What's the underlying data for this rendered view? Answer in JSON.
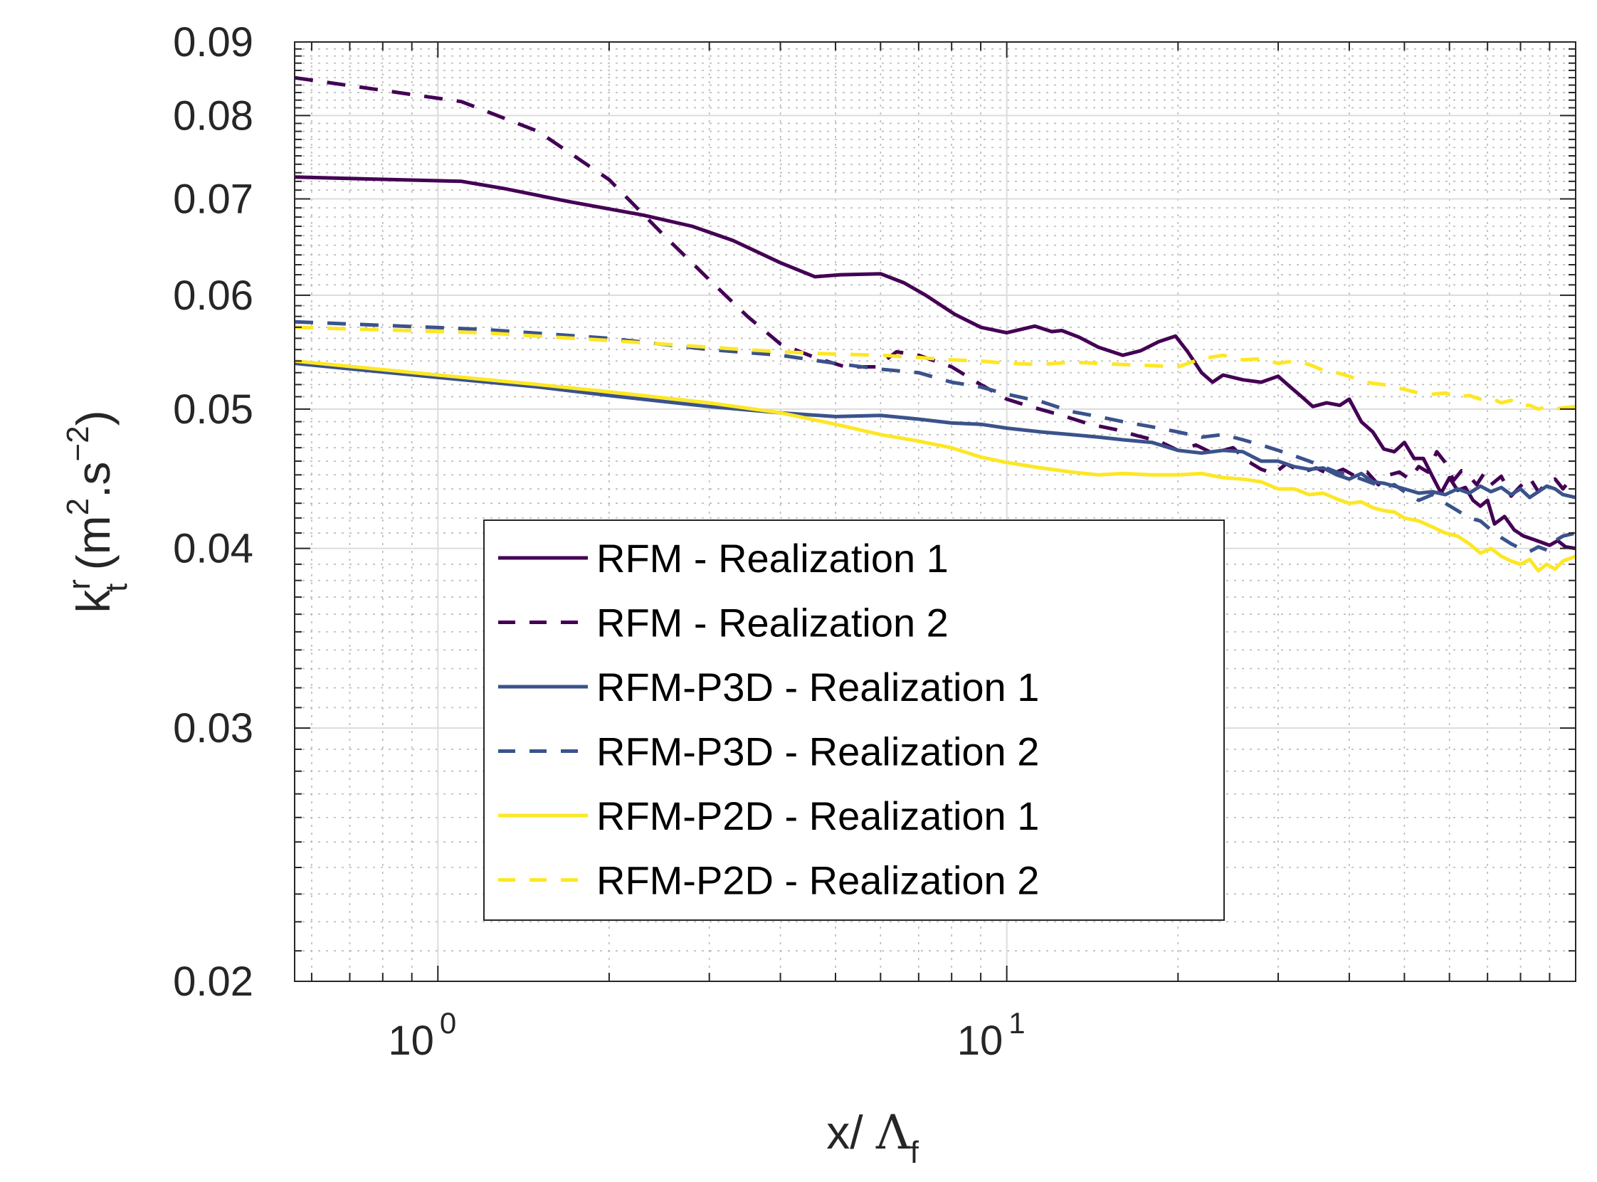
{
  "chart_data": {
    "type": "line",
    "x_scale": "log",
    "y_scale": "log",
    "xlim": [
      0.56,
      100
    ],
    "ylim": [
      0.02,
      0.09
    ],
    "grid": true,
    "xlabel": {
      "main": "x/ ",
      "symbol": "Λ",
      "sub": "f"
    },
    "ylabel": {
      "main": "k",
      "sup": "r",
      "sub": "t",
      "unit_open": " (m",
      "unit_sup1": "2",
      "unit_mid": ".s",
      "unit_sup2": "−2",
      "unit_close": ")"
    },
    "x_ticks": [
      {
        "value": 1,
        "base": "10",
        "exp": "0"
      },
      {
        "value": 10,
        "base": "10",
        "exp": "1"
      }
    ],
    "y_ticks": [
      {
        "value": 0.02,
        "label": "0.02"
      },
      {
        "value": 0.03,
        "label": "0.03"
      },
      {
        "value": 0.04,
        "label": "0.04"
      },
      {
        "value": 0.05,
        "label": "0.05"
      },
      {
        "value": 0.06,
        "label": "0.06"
      },
      {
        "value": 0.07,
        "label": "0.07"
      },
      {
        "value": 0.08,
        "label": "0.08"
      },
      {
        "value": 0.09,
        "label": "0.09"
      }
    ],
    "legend_position": "lower-center",
    "series": [
      {
        "name": "RFM - Realization 1",
        "color": "#440154",
        "dash": "solid",
        "x": [
          0.56,
          1.1,
          1.3,
          1.7,
          2.3,
          2.8,
          3.3,
          4.0,
          4.6,
          5.1,
          6.0,
          6.6,
          7.2,
          8.1,
          9.0,
          10.0,
          11.2,
          12.0,
          12.5,
          13.4,
          14.5,
          16.0,
          17.2,
          18.5,
          19.8,
          20.8,
          22.0,
          23.0,
          24.0,
          26.0,
          28.0,
          30.0,
          31.5,
          33.0,
          34.5,
          36.5,
          38.5,
          40.0,
          42.0,
          44.0,
          46.0,
          48.0,
          50.0,
          52.0,
          54.0,
          56.0,
          58.0,
          60.0,
          62.0,
          64.0,
          66.0,
          68.0,
          70.0,
          72.0,
          75.0,
          78.0,
          81.0,
          84.0,
          87.0,
          90.0,
          93.0,
          96.0,
          100.0
        ],
        "y": [
          0.0725,
          0.072,
          0.0712,
          0.0697,
          0.0682,
          0.067,
          0.0655,
          0.0632,
          0.0618,
          0.062,
          0.0621,
          0.0612,
          0.06,
          0.0582,
          0.057,
          0.0565,
          0.0571,
          0.0566,
          0.0567,
          0.0561,
          0.0552,
          0.0545,
          0.0549,
          0.0557,
          0.0562,
          0.0548,
          0.053,
          0.0522,
          0.0528,
          0.0524,
          0.0522,
          0.0527,
          0.0518,
          0.051,
          0.0502,
          0.0505,
          0.0503,
          0.0508,
          0.049,
          0.0482,
          0.0469,
          0.0467,
          0.0474,
          0.0462,
          0.0462,
          0.0449,
          0.0437,
          0.0448,
          0.0439,
          0.0441,
          0.0432,
          0.0428,
          0.0432,
          0.0416,
          0.0421,
          0.0412,
          0.0408,
          0.0406,
          0.0404,
          0.0402,
          0.0405,
          0.0401,
          0.04
        ]
      },
      {
        "name": "RFM - Realization 2",
        "color": "#440154",
        "dash": "dashed",
        "x": [
          0.56,
          1.1,
          1.5,
          2.0,
          2.5,
          3.0,
          3.5,
          4.0,
          4.6,
          5.2,
          5.9,
          6.4,
          7.0,
          8.0,
          9.0,
          10.0,
          11.0,
          12.5,
          14.0,
          15.5,
          17.0,
          18.5,
          20.0,
          21.5,
          23.0,
          25.0,
          26.5,
          28.0,
          29.5,
          31.0,
          33.0,
          35.0,
          37.0,
          39.0,
          41.0,
          43.0,
          45.0,
          47.0,
          49.0,
          51.0,
          53.0,
          55.0,
          57.0,
          59.0,
          61.0,
          63.0,
          65.0,
          67.0,
          69.0,
          71.0,
          74.0,
          77.0,
          80.0,
          83.0,
          86.0,
          89.0,
          92.0,
          95.0,
          98.0,
          100.0
        ],
        "y": [
          0.085,
          0.0818,
          0.078,
          0.0722,
          0.066,
          0.0615,
          0.058,
          0.0555,
          0.0543,
          0.0535,
          0.0535,
          0.0548,
          0.0545,
          0.0535,
          0.052,
          0.0508,
          0.0502,
          0.0495,
          0.0488,
          0.0484,
          0.0479,
          0.0475,
          0.0468,
          0.0472,
          0.0466,
          0.047,
          0.046,
          0.0454,
          0.0451,
          0.0458,
          0.0452,
          0.0455,
          0.045,
          0.0454,
          0.0449,
          0.0452,
          0.0443,
          0.045,
          0.0452,
          0.0447,
          0.0456,
          0.0452,
          0.0467,
          0.0459,
          0.0446,
          0.0453,
          0.0449,
          0.0443,
          0.0451,
          0.0443,
          0.0449,
          0.0435,
          0.0442,
          0.0448,
          0.0438,
          0.0444,
          0.0447,
          0.044,
          0.0447,
          0.0448
        ]
      },
      {
        "name": "RFM-P3D - Realization 1",
        "color": "#3B528B",
        "dash": "solid",
        "x": [
          0.56,
          1.0,
          1.5,
          2.0,
          3.0,
          4.0,
          5.0,
          6.0,
          7.0,
          8.0,
          9.0,
          10.0,
          11.5,
          13.0,
          14.5,
          16.0,
          18.0,
          20.0,
          22.0,
          24.0,
          26.0,
          28.0,
          30.0,
          32.0,
          34.0,
          36.0,
          38.0,
          40.0,
          42.0,
          44.0,
          46.0,
          48.0,
          50.0,
          53.0,
          56.0,
          59.0,
          62.0,
          65.0,
          68.0,
          71.0,
          74.0,
          77.0,
          80.0,
          83.0,
          86.0,
          89.0,
          92.0,
          95.0,
          100.0
        ],
        "y": [
          0.0538,
          0.0526,
          0.0518,
          0.0511,
          0.0502,
          0.0497,
          0.0494,
          0.0495,
          0.0492,
          0.0489,
          0.0488,
          0.0485,
          0.0482,
          0.048,
          0.0478,
          0.0476,
          0.0474,
          0.0468,
          0.0466,
          0.0468,
          0.0467,
          0.046,
          0.046,
          0.0456,
          0.0454,
          0.0455,
          0.045,
          0.0447,
          0.0451,
          0.0445,
          0.0444,
          0.0442,
          0.044,
          0.0437,
          0.0438,
          0.0436,
          0.044,
          0.0437,
          0.0442,
          0.0438,
          0.0441,
          0.0436,
          0.044,
          0.0434,
          0.0438,
          0.0442,
          0.044,
          0.0436,
          0.0434
        ]
      },
      {
        "name": "RFM-P3D - Realization 2",
        "color": "#3B528B",
        "dash": "dashed",
        "x": [
          0.56,
          1.2,
          2.0,
          3.0,
          4.0,
          5.0,
          6.0,
          7.0,
          8.0,
          9.0,
          10.0,
          11.5,
          13.0,
          14.5,
          16.0,
          18.0,
          20.0,
          22.0,
          24.0,
          26.0,
          28.0,
          30.0,
          32.0,
          34.0,
          36.0,
          38.0,
          40.0,
          42.0,
          44.0,
          46.0,
          48.0,
          50.0,
          53.0,
          56.0,
          59.0,
          62.0,
          65.0,
          68.0,
          71.0,
          74.0,
          77.0,
          80.0,
          83.0,
          86.0,
          89.0,
          92.0,
          95.0,
          100.0
        ],
        "y": [
          0.0575,
          0.0568,
          0.056,
          0.055,
          0.0545,
          0.0538,
          0.0533,
          0.053,
          0.0522,
          0.0518,
          0.0512,
          0.0506,
          0.0498,
          0.0494,
          0.049,
          0.0486,
          0.0482,
          0.0478,
          0.048,
          0.0476,
          0.0472,
          0.0468,
          0.0464,
          0.046,
          0.0456,
          0.0452,
          0.045,
          0.0447,
          0.0444,
          0.0441,
          0.0443,
          0.0438,
          0.0432,
          0.0436,
          0.043,
          0.0425,
          0.042,
          0.0418,
          0.0412,
          0.0407,
          0.0403,
          0.04,
          0.0398,
          0.0401,
          0.0399,
          0.0405,
          0.0408,
          0.041
        ]
      },
      {
        "name": "RFM-P2D - Realization 1",
        "color": "#FDE725",
        "dash": "solid",
        "x": [
          0.56,
          1.0,
          1.5,
          2.0,
          3.0,
          4.0,
          5.0,
          6.0,
          7.0,
          8.0,
          9.0,
          10.0,
          11.5,
          13.0,
          14.5,
          16.0,
          18.0,
          20.0,
          22.0,
          24.0,
          26.0,
          28.0,
          30.0,
          32.0,
          34.0,
          36.0,
          38.0,
          40.0,
          42.0,
          44.0,
          46.0,
          48.0,
          50.0,
          53.0,
          56.0,
          59.0,
          62.0,
          65.0,
          68.0,
          71.0,
          74.0,
          77.0,
          80.0,
          83.0,
          86.0,
          89.0,
          92.0,
          95.0,
          100.0
        ],
        "y": [
          0.054,
          0.0528,
          0.052,
          0.0514,
          0.0505,
          0.0497,
          0.0488,
          0.048,
          0.0475,
          0.047,
          0.0463,
          0.0459,
          0.0455,
          0.0452,
          0.045,
          0.0451,
          0.045,
          0.045,
          0.0451,
          0.0448,
          0.0447,
          0.0445,
          0.044,
          0.044,
          0.0436,
          0.0437,
          0.0433,
          0.043,
          0.0431,
          0.0427,
          0.0425,
          0.0424,
          0.042,
          0.0418,
          0.0414,
          0.041,
          0.0408,
          0.0403,
          0.0397,
          0.04,
          0.0395,
          0.0392,
          0.039,
          0.0393,
          0.0386,
          0.039,
          0.0387,
          0.0392,
          0.0395
        ]
      },
      {
        "name": "RFM-P2D - Realization 2",
        "color": "#FDE725",
        "dash": "dashed",
        "x": [
          0.56,
          1.2,
          2.0,
          3.0,
          4.0,
          5.0,
          6.0,
          7.0,
          8.0,
          9.0,
          10.0,
          11.5,
          13.0,
          14.5,
          16.0,
          18.0,
          20.0,
          22.0,
          24.0,
          26.0,
          28.0,
          30.0,
          32.0,
          34.0,
          36.0,
          38.0,
          40.0,
          42.0,
          44.0,
          46.0,
          48.0,
          50.0,
          53.0,
          56.0,
          59.0,
          62.0,
          65.0,
          68.0,
          71.0,
          74.0,
          77.0,
          80.0,
          83.0,
          86.0,
          89.0,
          92.0,
          95.0,
          100.0
        ],
        "y": [
          0.057,
          0.0565,
          0.0558,
          0.0552,
          0.0548,
          0.0546,
          0.0545,
          0.0543,
          0.0541,
          0.054,
          0.0538,
          0.0537,
          0.0539,
          0.0538,
          0.0537,
          0.0536,
          0.0535,
          0.0542,
          0.0545,
          0.0541,
          0.0542,
          0.0538,
          0.054,
          0.0537,
          0.0532,
          0.053,
          0.0527,
          0.0523,
          0.0521,
          0.052,
          0.0518,
          0.0516,
          0.0513,
          0.0512,
          0.0513,
          0.051,
          0.0511,
          0.0508,
          0.0509,
          0.0505,
          0.0507,
          0.0503,
          0.0503,
          0.05,
          0.0502,
          0.05,
          0.0501,
          0.0502
        ]
      }
    ]
  }
}
